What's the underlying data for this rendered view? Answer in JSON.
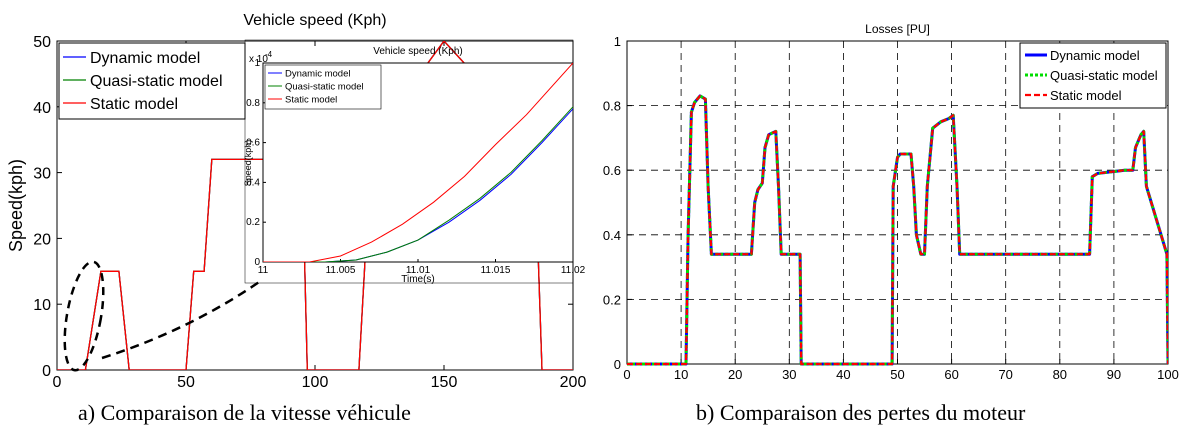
{
  "chart_data": [
    {
      "type": "line",
      "title": "Vehicle speed (Kph)",
      "xlabel": "",
      "ylabel": "Speed(kph)",
      "xlim": [
        0,
        200
      ],
      "ylim": [
        0,
        50
      ],
      "xticks": [
        0,
        50,
        100,
        150,
        200
      ],
      "yticks": [
        0,
        10,
        20,
        30,
        40,
        50
      ],
      "grid": false,
      "legend_position": "top-left",
      "series": [
        {
          "name": "Dynamic model",
          "color": "#0000ff",
          "x": [
            0,
            11,
            17,
            24,
            28,
            50,
            53,
            57,
            60,
            95,
            97,
            117,
            122,
            150,
            185,
            188,
            200
          ],
          "y": [
            0,
            0,
            15,
            15,
            0,
            0,
            15,
            15,
            32,
            32,
            0,
            0,
            35,
            50,
            35,
            0,
            0
          ]
        },
        {
          "name": "Quasi-static model",
          "color": "#008000",
          "x": [
            0,
            11,
            17,
            24,
            28,
            50,
            53,
            57,
            60,
            95,
            97,
            117,
            122,
            150,
            185,
            188,
            200
          ],
          "y": [
            0,
            0,
            15,
            15,
            0,
            0,
            15,
            15,
            32,
            32,
            0,
            0,
            35,
            50,
            35,
            0,
            0
          ]
        },
        {
          "name": "Static model",
          "color": "#ff0000",
          "x": [
            0,
            11,
            17,
            24,
            28,
            50,
            53,
            57,
            60,
            95,
            97,
            117,
            122,
            150,
            185,
            188,
            200
          ],
          "y": [
            0,
            0,
            15,
            15,
            0,
            0,
            15,
            15,
            32,
            32,
            0,
            0,
            35,
            50,
            35,
            0,
            0
          ]
        }
      ],
      "caption": "a)   Comparaison de la vitesse véhicule"
    },
    {
      "type": "line",
      "title": "Vehicle speed (Kph)",
      "xlabel": "Time(s)",
      "ylabel": "Speed(kph)",
      "scale_label": "x 10",
      "scale_exponent": "-4",
      "xlim": [
        11,
        11.02
      ],
      "ylim": [
        0,
        1
      ],
      "xticks": [
        "11",
        "11.005",
        "11.01",
        "11.015",
        "11.02"
      ],
      "yticks": [
        "0",
        "0.2",
        "0.4",
        "0.6",
        "0.8",
        "1"
      ],
      "legend_position": "top-left",
      "series": [
        {
          "name": "Dynamic model",
          "color": "#0000ff",
          "x": [
            11,
            11.004,
            11.006,
            11.008,
            11.01,
            11.012,
            11.014,
            11.016,
            11.018,
            11.02
          ],
          "y": [
            0,
            0,
            0.01,
            0.05,
            0.11,
            0.2,
            0.31,
            0.44,
            0.6,
            0.77
          ]
        },
        {
          "name": "Quasi-static model",
          "color": "#008000",
          "x": [
            11,
            11.004,
            11.006,
            11.008,
            11.01,
            11.012,
            11.014,
            11.016,
            11.018,
            11.02
          ],
          "y": [
            0,
            0,
            0.01,
            0.05,
            0.11,
            0.21,
            0.32,
            0.45,
            0.61,
            0.78
          ]
        },
        {
          "name": "Static model",
          "color": "#ff0000",
          "x": [
            11,
            11.003,
            11.005,
            11.007,
            11.009,
            11.011,
            11.013,
            11.015,
            11.017,
            11.02
          ],
          "y": [
            0,
            0,
            0.03,
            0.1,
            0.19,
            0.3,
            0.43,
            0.59,
            0.74,
            1.0
          ]
        }
      ]
    },
    {
      "type": "line",
      "title": "Losses [PU]",
      "xlabel": "",
      "ylabel": "",
      "xlim": [
        0,
        100
      ],
      "ylim": [
        0,
        1
      ],
      "xticks": [
        0,
        10,
        20,
        30,
        40,
        50,
        60,
        70,
        80,
        90,
        100
      ],
      "yticks": [
        0,
        0.2,
        0.4,
        0.6,
        0.8,
        1
      ],
      "grid": true,
      "legend_position": "top-right",
      "series": [
        {
          "name": "Dynamic model",
          "color": "#0000ff",
          "x": [
            0,
            10.9,
            11.3,
            11.9,
            12.5,
            13.5,
            14.5,
            15,
            15.6,
            16.5,
            23,
            23.6,
            24.2,
            25,
            25.5,
            26.2,
            27.5,
            28,
            28.5,
            32,
            32.2,
            49,
            49.2,
            50,
            50.5,
            52.5,
            53,
            53.5,
            54.3,
            55,
            55.5,
            56.5,
            58,
            59.5,
            60.3,
            61,
            61.5,
            85.5,
            86,
            87,
            92,
            93.5,
            94,
            95,
            95.5,
            96,
            99.8,
            100
          ],
          "y": [
            0,
            0,
            0.4,
            0.78,
            0.81,
            0.83,
            0.82,
            0.55,
            0.34,
            0.34,
            0.34,
            0.5,
            0.54,
            0.56,
            0.67,
            0.71,
            0.72,
            0.55,
            0.34,
            0.34,
            0,
            0,
            0.55,
            0.64,
            0.65,
            0.65,
            0.55,
            0.4,
            0.34,
            0.34,
            0.55,
            0.73,
            0.75,
            0.76,
            0.77,
            0.55,
            0.34,
            0.34,
            0.58,
            0.59,
            0.6,
            0.6,
            0.67,
            0.71,
            0.72,
            0.55,
            0.34,
            0
          ]
        },
        {
          "name": "Quasi-static model",
          "color": "#00dd00",
          "x": [
            0,
            10.9,
            11.3,
            11.9,
            12.5,
            13.5,
            14.5,
            15,
            15.6,
            16.5,
            23,
            23.6,
            24.2,
            25,
            25.5,
            26.2,
            27.5,
            28,
            28.5,
            32,
            32.2,
            49,
            49.2,
            50,
            50.5,
            52.5,
            53,
            53.5,
            54.3,
            55,
            55.5,
            56.5,
            58,
            59.5,
            60.3,
            61,
            61.5,
            85.5,
            86,
            87,
            92,
            93.5,
            94,
            95,
            95.5,
            96,
            99.8,
            100
          ],
          "y": [
            0,
            0,
            0.4,
            0.78,
            0.81,
            0.83,
            0.82,
            0.55,
            0.34,
            0.34,
            0.34,
            0.5,
            0.54,
            0.56,
            0.67,
            0.71,
            0.72,
            0.55,
            0.34,
            0.34,
            0,
            0,
            0.55,
            0.64,
            0.65,
            0.65,
            0.55,
            0.4,
            0.34,
            0.34,
            0.55,
            0.73,
            0.75,
            0.76,
            0.77,
            0.55,
            0.34,
            0.34,
            0.58,
            0.59,
            0.6,
            0.6,
            0.67,
            0.71,
            0.72,
            0.55,
            0.34,
            0
          ]
        },
        {
          "name": "Static model",
          "color": "#ff0000",
          "x": [
            0,
            10.9,
            11.3,
            11.9,
            12.5,
            13.5,
            14.5,
            15,
            15.6,
            16.5,
            23,
            23.6,
            24.2,
            25,
            25.5,
            26.2,
            27.5,
            28,
            28.5,
            32,
            32.2,
            49,
            49.2,
            50,
            50.5,
            52.5,
            53,
            53.5,
            54.3,
            55,
            55.5,
            56.5,
            58,
            59.5,
            60.3,
            61,
            61.5,
            85.5,
            86,
            87,
            92,
            93.5,
            94,
            95,
            95.5,
            96,
            99.8,
            100
          ],
          "y": [
            0,
            0,
            0.4,
            0.78,
            0.81,
            0.83,
            0.82,
            0.55,
            0.34,
            0.34,
            0.34,
            0.5,
            0.54,
            0.56,
            0.67,
            0.71,
            0.72,
            0.55,
            0.34,
            0.34,
            0,
            0,
            0.55,
            0.64,
            0.65,
            0.65,
            0.55,
            0.4,
            0.34,
            0.34,
            0.55,
            0.73,
            0.75,
            0.76,
            0.77,
            0.55,
            0.34,
            0.34,
            0.58,
            0.59,
            0.6,
            0.6,
            0.67,
            0.71,
            0.72,
            0.55,
            0.34,
            0
          ]
        }
      ],
      "caption": "b)   Comparaison des pertes du moteur"
    }
  ]
}
